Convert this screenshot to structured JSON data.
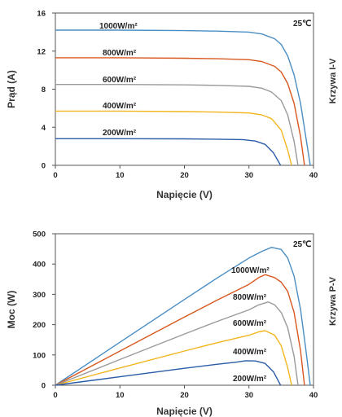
{
  "chart_data": [
    {
      "type": "line",
      "side_label": "Krzywa I-V",
      "xlabel": "Napięcie (V)",
      "ylabel": "Prąd (A)",
      "xlim": [
        0,
        40
      ],
      "ylim": [
        0,
        16
      ],
      "xticks": [
        "0",
        "10",
        "20",
        "30",
        "40"
      ],
      "yticks": [
        "0",
        "4",
        "8",
        "12",
        "16"
      ],
      "annotation": "25℃",
      "grid": false,
      "series": [
        {
          "name": "1000W/m²",
          "color": "#4a8ec4",
          "x": [
            0,
            10,
            20,
            25,
            30,
            32,
            34,
            35,
            36,
            37,
            38,
            38.8,
            39.5
          ],
          "y": [
            14.2,
            14.2,
            14.15,
            14.1,
            14.0,
            13.8,
            13.3,
            12.7,
            11.5,
            9.5,
            6.5,
            3.0,
            0
          ]
        },
        {
          "name": "800W/m²",
          "color": "#d9581f",
          "x": [
            0,
            10,
            20,
            25,
            30,
            32,
            34,
            35,
            36,
            37,
            38,
            38.6
          ],
          "y": [
            11.3,
            11.3,
            11.25,
            11.2,
            11.1,
            10.9,
            10.4,
            9.8,
            8.6,
            6.5,
            3.0,
            0
          ]
        },
        {
          "name": "600W/m²",
          "color": "#9a9a9a",
          "x": [
            0,
            10,
            20,
            25,
            30,
            32,
            33.5,
            35,
            36,
            37,
            37.6
          ],
          "y": [
            8.5,
            8.5,
            8.45,
            8.4,
            8.3,
            8.1,
            7.7,
            6.8,
            5.3,
            2.5,
            0
          ]
        },
        {
          "name": "400W/m²",
          "color": "#f2b51c",
          "x": [
            0,
            10,
            20,
            25,
            30,
            32,
            33.5,
            35,
            36,
            36.6
          ],
          "y": [
            5.7,
            5.7,
            5.65,
            5.6,
            5.5,
            5.3,
            4.9,
            3.7,
            1.6,
            0
          ]
        },
        {
          "name": "200W/m²",
          "color": "#2a5ca8",
          "x": [
            0,
            10,
            20,
            25,
            29,
            31,
            32.5,
            33.8,
            34.9
          ],
          "y": [
            2.8,
            2.8,
            2.78,
            2.75,
            2.7,
            2.55,
            2.2,
            1.3,
            0
          ]
        }
      ]
    },
    {
      "type": "line",
      "side_label": "Krzywa P-V",
      "xlabel": "Napięcie (V)",
      "ylabel": "Moc (W)",
      "xlim": [
        0,
        40
      ],
      "ylim": [
        0,
        500
      ],
      "xticks": [
        "0",
        "10",
        "20",
        "30",
        "40"
      ],
      "yticks": [
        "0",
        "100",
        "200",
        "300",
        "400",
        "500"
      ],
      "annotation": "25℃",
      "grid": false,
      "series": [
        {
          "name": "1000W/m²",
          "color": "#4a8ec4",
          "x": [
            0,
            10,
            20,
            25,
            30,
            32,
            33.5,
            35,
            36,
            37,
            38,
            38.8,
            39.5
          ],
          "y": [
            0,
            142,
            283,
            353,
            420,
            442,
            455,
            448,
            420,
            360,
            250,
            120,
            0
          ]
        },
        {
          "name": "800W/m²",
          "color": "#d9581f",
          "x": [
            0,
            10,
            20,
            25,
            30,
            31.5,
            32.5,
            34,
            35,
            36,
            37,
            38,
            38.6
          ],
          "y": [
            0,
            113,
            225,
            280,
            333,
            355,
            365,
            355,
            340,
            310,
            240,
            114,
            0
          ]
        },
        {
          "name": "600W/m²",
          "color": "#9a9a9a",
          "x": [
            0,
            10,
            20,
            25,
            30,
            31.5,
            33,
            34,
            35,
            36,
            37,
            37.6
          ],
          "y": [
            0,
            85,
            169,
            210,
            249,
            265,
            275,
            265,
            240,
            190,
            95,
            0
          ]
        },
        {
          "name": "400W/m²",
          "color": "#f2b51c",
          "x": [
            0,
            10,
            20,
            25,
            30,
            31.5,
            32.5,
            34,
            35,
            36,
            36.6
          ],
          "y": [
            0,
            57,
            113,
            140,
            165,
            176,
            180,
            165,
            130,
            58,
            0
          ]
        },
        {
          "name": "200W/m²",
          "color": "#2a5ca8",
          "x": [
            0,
            10,
            20,
            25,
            28,
            29.5,
            31,
            32.5,
            33.8,
            34.9
          ],
          "y": [
            0,
            28,
            56,
            69,
            76,
            81,
            80,
            72,
            44,
            0
          ]
        }
      ]
    }
  ]
}
